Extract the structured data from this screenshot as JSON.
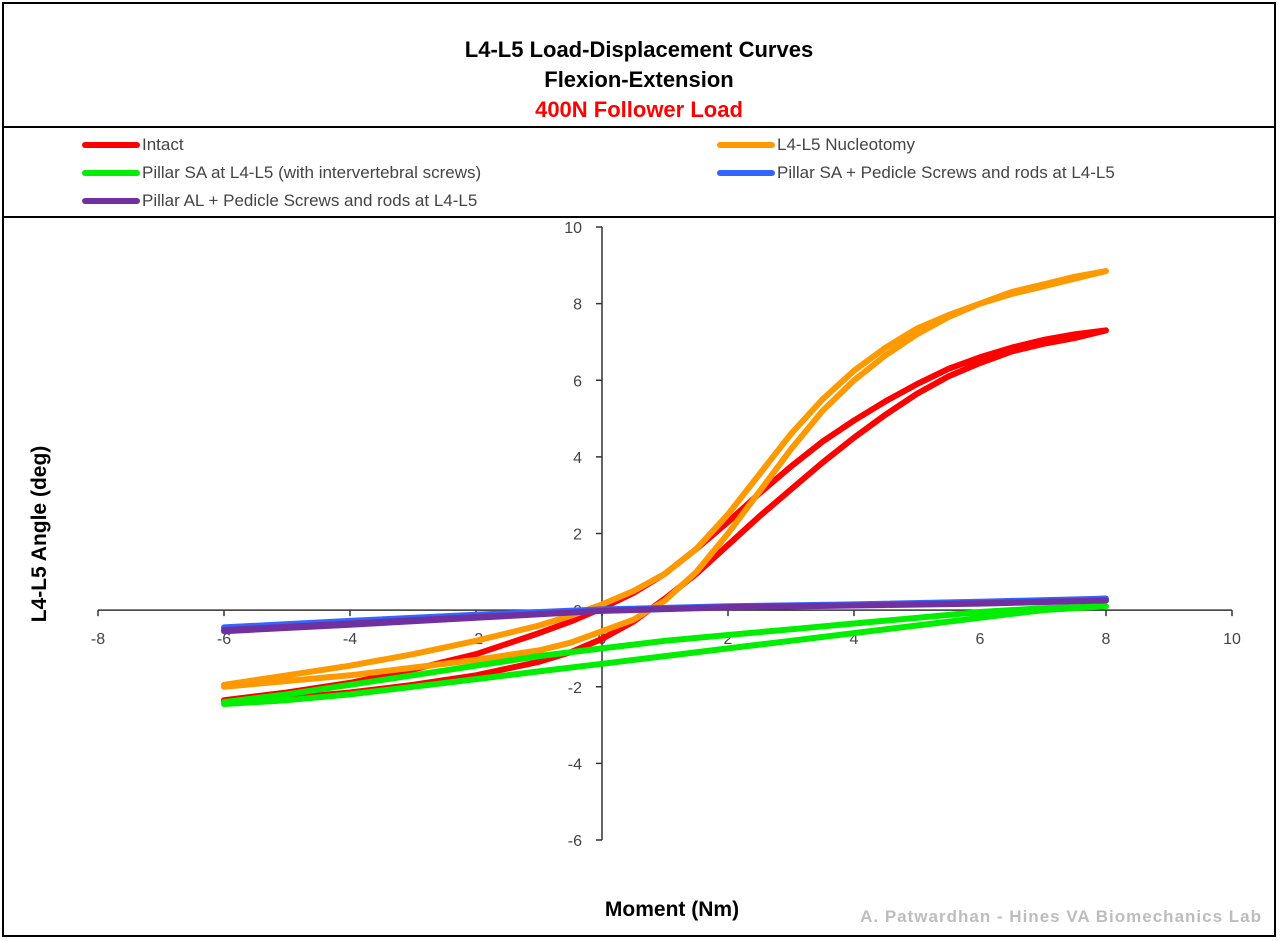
{
  "chart_data": {
    "type": "line",
    "title": "L4-L5 Load-Displacement Curves",
    "subtitle": "Flexion-Extension",
    "subtitle2": "400N Follower Load",
    "xlabel": "Moment (Nm)",
    "ylabel": "L4-L5 Angle (deg)",
    "xlim": [
      -8,
      10
    ],
    "ylim": [
      -6,
      10
    ],
    "x_ticks": [
      "-8",
      "-6",
      "-4",
      "-2",
      "0",
      "2",
      "4",
      "6",
      "8",
      "10"
    ],
    "y_ticks": [
      "-6",
      "-4",
      "-2",
      "0",
      "2",
      "4",
      "6",
      "8",
      "10"
    ],
    "grid": false,
    "legend_position": "top",
    "watermark": "A. Patwardhan - Hines VA Biomechanics Lab",
    "series": [
      {
        "name": "Intact",
        "color": "#ff0000",
        "x": [
          -6,
          -5,
          -4,
          -3,
          -2,
          -1,
          -0.5,
          0,
          0.5,
          1,
          1.5,
          2,
          2.5,
          3,
          3.5,
          4,
          4.5,
          5,
          5.5,
          6,
          6.5,
          7,
          7.5,
          8,
          7.5,
          7,
          6.5,
          6,
          5.5,
          5,
          4.5,
          4,
          3.5,
          3,
          2.5,
          2,
          1.5,
          1,
          0.5,
          0,
          -0.5,
          -1,
          -2,
          -3,
          -4,
          -5,
          -6
        ],
        "y": [
          -2.4,
          -2.3,
          -2.15,
          -1.95,
          -1.7,
          -1.35,
          -1.1,
          -0.75,
          -0.3,
          0.3,
          0.95,
          1.7,
          2.45,
          3.15,
          3.85,
          4.5,
          5.1,
          5.65,
          6.1,
          6.45,
          6.75,
          6.95,
          7.1,
          7.3,
          7.2,
          7.05,
          6.85,
          6.6,
          6.3,
          5.9,
          5.45,
          4.95,
          4.4,
          3.75,
          3.05,
          2.3,
          1.6,
          0.95,
          0.45,
          0.05,
          -0.3,
          -0.6,
          -1.15,
          -1.55,
          -1.9,
          -2.15,
          -2.35
        ]
      },
      {
        "name": "L4-L5 Nucleotomy",
        "color": "#ff9900",
        "x": [
          -6,
          -5,
          -4,
          -3,
          -2,
          -1,
          -0.5,
          0,
          0.5,
          1,
          1.5,
          2,
          2.5,
          3,
          3.5,
          4,
          4.5,
          5,
          5.5,
          6,
          6.5,
          7,
          7.5,
          8,
          7.5,
          7,
          6.5,
          6,
          5.5,
          5,
          4.5,
          4,
          3.5,
          3,
          2.5,
          2,
          1.5,
          1,
          0.5,
          0,
          -0.5,
          -1,
          -2,
          -3,
          -4,
          -5,
          -6
        ],
        "y": [
          -2.0,
          -1.85,
          -1.7,
          -1.5,
          -1.3,
          -1.05,
          -0.85,
          -0.55,
          -0.25,
          0.25,
          1.0,
          2.0,
          3.1,
          4.2,
          5.2,
          6.0,
          6.65,
          7.2,
          7.65,
          8.0,
          8.3,
          8.5,
          8.7,
          8.85,
          8.65,
          8.45,
          8.25,
          8.0,
          7.7,
          7.35,
          6.85,
          6.25,
          5.5,
          4.6,
          3.55,
          2.5,
          1.6,
          0.95,
          0.5,
          0.15,
          -0.15,
          -0.4,
          -0.8,
          -1.15,
          -1.45,
          -1.7,
          -1.95
        ]
      },
      {
        "name": "Pillar SA at L4-L5 (with intervertebral screws)",
        "color": "#00ee00",
        "x": [
          -6,
          -5,
          -4,
          -3,
          -2,
          -1,
          0,
          1,
          2,
          3,
          4,
          5,
          6,
          7,
          8,
          7,
          6,
          5,
          4,
          3,
          2,
          1,
          0,
          -1,
          -2,
          -3,
          -4,
          -5,
          -6
        ],
        "y": [
          -2.45,
          -2.35,
          -2.2,
          -2.0,
          -1.8,
          -1.6,
          -1.4,
          -1.2,
          -1.0,
          -0.8,
          -0.6,
          -0.4,
          -0.2,
          0.0,
          0.1,
          0.05,
          -0.05,
          -0.2,
          -0.35,
          -0.5,
          -0.65,
          -0.8,
          -1.0,
          -1.2,
          -1.45,
          -1.7,
          -1.95,
          -2.2,
          -2.4
        ]
      },
      {
        "name": "Pillar SA + Pedicle Screws and rods at L4-L5",
        "color": "#3366ff",
        "x": [
          -6,
          -4,
          -2,
          0,
          2,
          4,
          6,
          8,
          6,
          4,
          2,
          0,
          -2,
          -4,
          -6
        ],
        "y": [
          -0.45,
          -0.3,
          -0.15,
          0.0,
          0.1,
          0.15,
          0.2,
          0.3,
          0.22,
          0.15,
          0.1,
          0.02,
          -0.12,
          -0.28,
          -0.45
        ]
      },
      {
        "name": "Pillar AL + Pedicle Screws and rods at L4-L5",
        "color": "#7030a0",
        "x": [
          -6,
          -4,
          -2,
          0,
          2,
          4,
          6,
          8,
          6,
          4,
          2,
          0,
          -2,
          -4,
          -6
        ],
        "y": [
          -0.55,
          -0.38,
          -0.2,
          -0.02,
          0.08,
          0.12,
          0.17,
          0.25,
          0.18,
          0.12,
          0.07,
          -0.02,
          -0.18,
          -0.35,
          -0.52
        ]
      }
    ]
  }
}
